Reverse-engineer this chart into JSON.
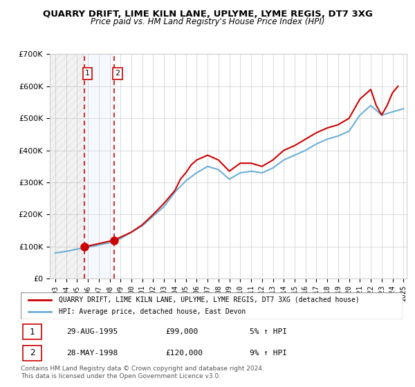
{
  "title": "QUARRY DRIFT, LIME KILN LANE, UPLYME, LYME REGIS, DT7 3XG",
  "subtitle": "Price paid vs. HM Land Registry's House Price Index (HPI)",
  "legend_line1": "QUARRY DRIFT, LIME KILN LANE, UPLYME, LYME REGIS, DT7 3XG (detached house)",
  "legend_line2": "HPI: Average price, detached house, East Devon",
  "footer": "Contains HM Land Registry data © Crown copyright and database right 2024.\nThis data is licensed under the Open Government Licence v3.0.",
  "sale1_label": "1",
  "sale1_date": "29-AUG-1995",
  "sale1_price": "£99,000",
  "sale1_hpi": "5% ↑ HPI",
  "sale2_label": "2",
  "sale2_date": "28-MAY-1998",
  "sale2_price": "£120,000",
  "sale2_hpi": "9% ↑ HPI",
  "sale1_year": 1995.66,
  "sale1_value": 99000,
  "sale2_year": 1998.41,
  "sale2_value": 120000,
  "hpi_color": "#6baed6",
  "price_color": "#cc0000",
  "marker_color": "#cc0000",
  "shaded_color": "#d0e4f7",
  "ylim": [
    0,
    700000
  ],
  "yticks": [
    0,
    100000,
    200000,
    300000,
    400000,
    500000,
    600000,
    700000
  ],
  "hpi_x": [
    1993,
    1994,
    1995,
    1996,
    1997,
    1998,
    1999,
    2000,
    2001,
    2002,
    2003,
    2004,
    2005,
    2006,
    2007,
    2008,
    2009,
    2010,
    2011,
    2012,
    2013,
    2014,
    2015,
    2016,
    2017,
    2018,
    2019,
    2020,
    2021,
    2022,
    2023,
    2024,
    2025
  ],
  "hpi_y": [
    80000,
    85000,
    92000,
    98000,
    105000,
    112000,
    125000,
    145000,
    165000,
    195000,
    225000,
    270000,
    305000,
    330000,
    350000,
    340000,
    310000,
    330000,
    335000,
    330000,
    345000,
    370000,
    385000,
    400000,
    420000,
    435000,
    445000,
    460000,
    510000,
    540000,
    510000,
    520000,
    530000
  ],
  "price_x": [
    1995.66,
    1998.41,
    2000,
    2001,
    2002,
    2003,
    2004,
    2004.5,
    2005,
    2005.5,
    2006,
    2007,
    2008,
    2009,
    2010,
    2011,
    2012,
    2013,
    2014,
    2015,
    2016,
    2017,
    2018,
    2019,
    2020,
    2021,
    2022,
    2022.5,
    2023,
    2023.5,
    2024,
    2024.5
  ],
  "price_y": [
    99000,
    120000,
    145000,
    168000,
    200000,
    235000,
    275000,
    310000,
    330000,
    355000,
    370000,
    385000,
    370000,
    335000,
    360000,
    360000,
    350000,
    370000,
    400000,
    415000,
    435000,
    455000,
    470000,
    480000,
    500000,
    560000,
    590000,
    540000,
    510000,
    540000,
    580000,
    600000
  ]
}
